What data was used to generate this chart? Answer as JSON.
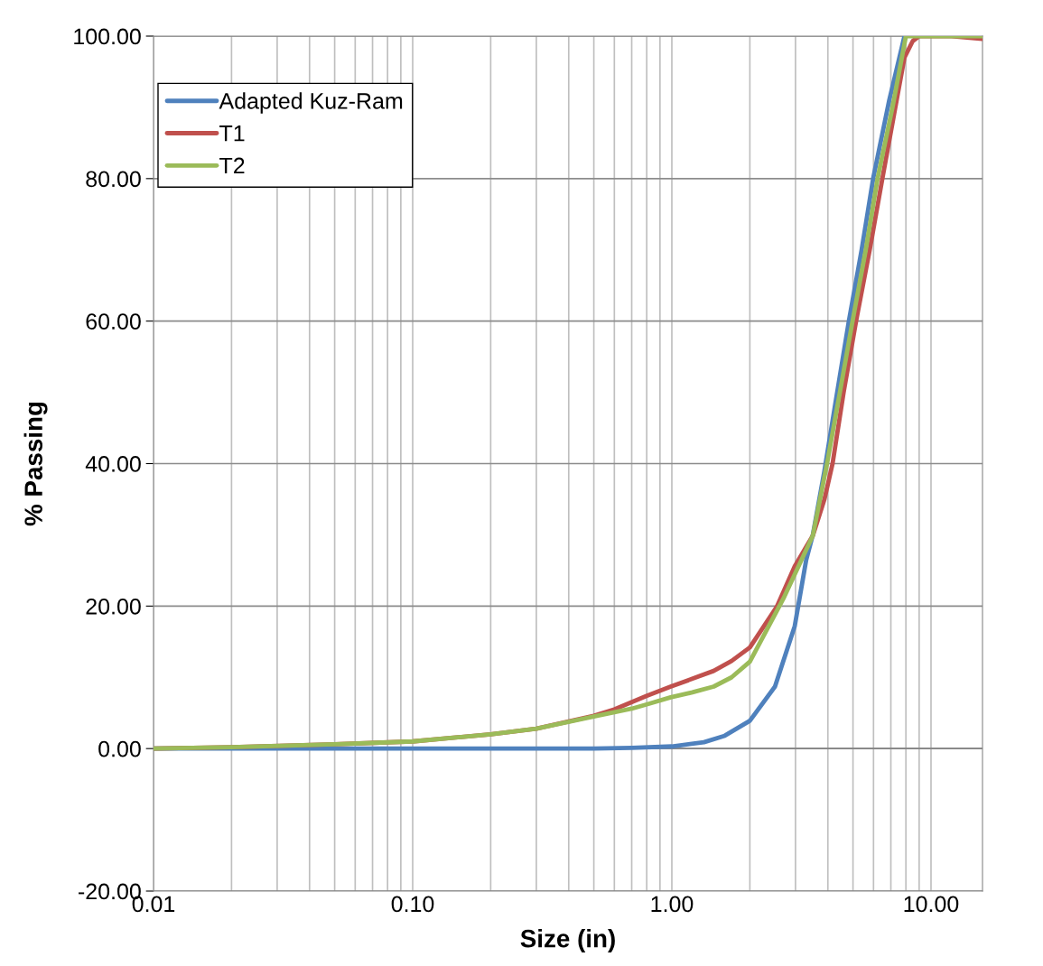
{
  "chart_data": {
    "type": "line",
    "xlabel": "Size (in)",
    "ylabel": "% Passing",
    "log": "x",
    "xlim": [
      0.01,
      15.8
    ],
    "xticks": [
      {
        "value": 0.01,
        "label": "0.01"
      },
      {
        "value": 0.1,
        "label": "0.10"
      },
      {
        "value": 1,
        "label": "1.00"
      },
      {
        "value": 10,
        "label": "10.00"
      }
    ],
    "ylim": [
      -20,
      100
    ],
    "yticks": [
      {
        "value": -20,
        "label": "-20.00"
      },
      {
        "value": 0,
        "label": "0.00"
      },
      {
        "value": 20,
        "label": "20.00"
      },
      {
        "value": 40,
        "label": "40.00"
      },
      {
        "value": 60,
        "label": "60.00"
      },
      {
        "value": 80,
        "label": "80.00"
      },
      {
        "value": 100,
        "label": "100.00"
      }
    ],
    "grid": true,
    "legend": "top left",
    "marker": "none",
    "line_style": "solid",
    "series": [
      {
        "name": "Adapted Kuz-Ram",
        "color": "#4f81bd",
        "x": [
          0.01,
          0.1,
          0.5,
          0.7,
          1.0,
          1.33,
          1.6,
          2.0,
          2.5,
          2.98,
          3.3,
          3.5,
          3.88,
          4.3,
          4.82,
          5.4,
          5.98,
          6.9,
          7.9
        ],
        "values": [
          0,
          0,
          0,
          0.1,
          0.3,
          0.9,
          1.8,
          3.9,
          8.7,
          17.2,
          26.5,
          30,
          39,
          49,
          60,
          70,
          80,
          91,
          100
        ]
      },
      {
        "name": "T1",
        "color": "#c0504d",
        "x": [
          0.01,
          0.02,
          0.05,
          0.1,
          0.2,
          0.3,
          0.5,
          0.6,
          0.8,
          0.99,
          1.2,
          1.45,
          1.7,
          2.0,
          2.54,
          2.98,
          3.5,
          3.88,
          4.17,
          4.6,
          5.14,
          5.8,
          6.49,
          7.2,
          7.9,
          8.5,
          9.0,
          10,
          12,
          15.8
        ],
        "values": [
          0,
          0.2,
          0.6,
          1.0,
          2.0,
          2.8,
          4.6,
          5.5,
          7.4,
          8.7,
          9.8,
          10.9,
          12.3,
          14.2,
          19.9,
          25.6,
          29.9,
          35,
          40,
          50,
          60,
          70,
          80,
          89,
          97,
          99.3,
          100,
          100,
          100,
          99.6
        ]
      },
      {
        "name": "T2",
        "color": "#9bbb59",
        "x": [
          0.01,
          0.02,
          0.05,
          0.1,
          0.2,
          0.3,
          0.5,
          0.7,
          0.8,
          0.99,
          1.2,
          1.45,
          1.7,
          2.0,
          2.69,
          3.5,
          3.97,
          4.45,
          4.98,
          5.6,
          6.22,
          7.1,
          8.0,
          10,
          15.8
        ],
        "values": [
          0,
          0.2,
          0.6,
          1.0,
          2.0,
          2.8,
          4.5,
          5.6,
          6.2,
          7.2,
          7.9,
          8.7,
          10.0,
          12.2,
          21,
          29.9,
          40,
          50,
          60,
          70,
          80,
          90,
          100,
          100,
          100
        ]
      }
    ]
  }
}
